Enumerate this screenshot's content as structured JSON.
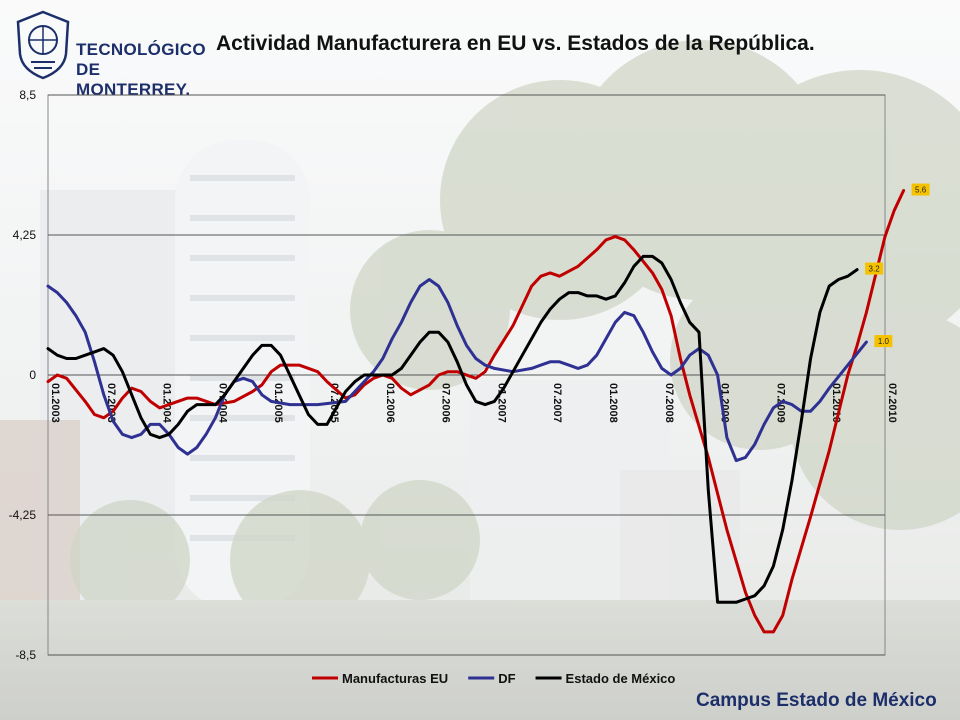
{
  "header": {
    "logo_line1": "TECNOLÓGICO",
    "logo_line2": "DE MONTERREY."
  },
  "footer": {
    "campus": "Campus Estado de México"
  },
  "colors": {
    "eu": "#c00000",
    "df": "#2e3192",
    "edomex": "#000000",
    "label_bg": "#f5c200"
  },
  "chart_data": {
    "type": "line",
    "title": "Actividad Manufacturera en EU vs. Estados de la República.",
    "xlabel": "",
    "ylabel": "",
    "ylim": [
      -8.5,
      8.5
    ],
    "yticks": [
      8.5,
      4.25,
      0,
      -4.25,
      -8.5
    ],
    "ytick_labels": [
      "8,5",
      "4,25",
      "0",
      "-4,25",
      "-8,5"
    ],
    "x_start": "2003-01",
    "x_end": "2010-07",
    "xtick_labels": [
      "01.2003",
      "07.2003",
      "01.2004",
      "07.2004",
      "01.2005",
      "07.2005",
      "01.2006",
      "07.2006",
      "01.2007",
      "07.2007",
      "01.2008",
      "07.2008",
      "01.2009",
      "07.2009",
      "01.2010",
      "07.2010"
    ],
    "grid": true,
    "legend": "bottom",
    "series": [
      {
        "name": "Manufacturas EU",
        "color": "#c00000",
        "last_label": "5.6",
        "points": [
          [
            "2003-01",
            -0.2
          ],
          [
            "2003-02",
            0.0
          ],
          [
            "2003-03",
            -0.1
          ],
          [
            "2003-05",
            -0.8
          ],
          [
            "2003-06",
            -1.2
          ],
          [
            "2003-07",
            -1.3
          ],
          [
            "2003-08",
            -1.1
          ],
          [
            "2003-09",
            -0.7
          ],
          [
            "2003-10",
            -0.4
          ],
          [
            "2003-11",
            -0.5
          ],
          [
            "2003-12",
            -0.8
          ],
          [
            "2004-01",
            -1.0
          ],
          [
            "2004-02",
            -0.9
          ],
          [
            "2004-04",
            -0.7
          ],
          [
            "2004-05",
            -0.7
          ],
          [
            "2004-07",
            -0.9
          ],
          [
            "2004-09",
            -0.8
          ],
          [
            "2004-11",
            -0.5
          ],
          [
            "2004-12",
            -0.3
          ],
          [
            "2005-01",
            0.1
          ],
          [
            "2005-02",
            0.3
          ],
          [
            "2005-04",
            0.3
          ],
          [
            "2005-06",
            0.1
          ],
          [
            "2005-07",
            -0.2
          ],
          [
            "2005-09",
            -0.7
          ],
          [
            "2005-10",
            -0.6
          ],
          [
            "2005-11",
            -0.3
          ],
          [
            "2005-12",
            -0.1
          ],
          [
            "2006-01",
            0.0
          ],
          [
            "2006-02",
            -0.1
          ],
          [
            "2006-03",
            -0.4
          ],
          [
            "2006-04",
            -0.6
          ],
          [
            "2006-06",
            -0.3
          ],
          [
            "2006-07",
            0.0
          ],
          [
            "2006-08",
            0.1
          ],
          [
            "2006-09",
            0.1
          ],
          [
            "2006-10",
            0.0
          ],
          [
            "2006-11",
            -0.1
          ],
          [
            "2006-12",
            0.1
          ],
          [
            "2007-01",
            0.6
          ],
          [
            "2007-03",
            1.5
          ],
          [
            "2007-05",
            2.7
          ],
          [
            "2007-06",
            3.0
          ],
          [
            "2007-07",
            3.1
          ],
          [
            "2007-08",
            3.0
          ],
          [
            "2007-10",
            3.3
          ],
          [
            "2007-12",
            3.8
          ],
          [
            "2008-01",
            4.1
          ],
          [
            "2008-02",
            4.2
          ],
          [
            "2008-03",
            4.1
          ],
          [
            "2008-04",
            3.8
          ],
          [
            "2008-06",
            3.1
          ],
          [
            "2008-07",
            2.6
          ],
          [
            "2008-08",
            1.8
          ],
          [
            "2008-09",
            0.5
          ],
          [
            "2008-10",
            -0.6
          ],
          [
            "2008-12",
            -2.5
          ],
          [
            "2009-02",
            -4.7
          ],
          [
            "2009-04",
            -6.6
          ],
          [
            "2009-05",
            -7.3
          ],
          [
            "2009-06",
            -7.8
          ],
          [
            "2009-07",
            -7.8
          ],
          [
            "2009-08",
            -7.3
          ],
          [
            "2009-09",
            -6.2
          ],
          [
            "2009-11",
            -4.3
          ],
          [
            "2010-01",
            -2.3
          ],
          [
            "2010-03",
            0.0
          ],
          [
            "2010-04",
            0.9
          ],
          [
            "2010-05",
            1.9
          ],
          [
            "2010-07",
            4.2
          ],
          [
            "2010-08",
            5.0
          ],
          [
            "2010-09",
            5.6
          ]
        ]
      },
      {
        "name": "DF",
        "color": "#2e3192",
        "last_label": "1.0",
        "points": [
          [
            "2003-01",
            2.7
          ],
          [
            "2003-02",
            2.5
          ],
          [
            "2003-03",
            2.2
          ],
          [
            "2003-04",
            1.8
          ],
          [
            "2003-05",
            1.3
          ],
          [
            "2003-06",
            0.4
          ],
          [
            "2003-07",
            -0.6
          ],
          [
            "2003-08",
            -1.4
          ],
          [
            "2003-09",
            -1.8
          ],
          [
            "2003-10",
            -1.9
          ],
          [
            "2003-11",
            -1.8
          ],
          [
            "2003-12",
            -1.5
          ],
          [
            "2004-01",
            -1.5
          ],
          [
            "2004-02",
            -1.8
          ],
          [
            "2004-03",
            -2.2
          ],
          [
            "2004-04",
            -2.4
          ],
          [
            "2004-05",
            -2.2
          ],
          [
            "2004-06",
            -1.8
          ],
          [
            "2004-07",
            -1.3
          ],
          [
            "2004-08",
            -0.6
          ],
          [
            "2004-09",
            -0.2
          ],
          [
            "2004-10",
            -0.1
          ],
          [
            "2004-11",
            -0.2
          ],
          [
            "2004-12",
            -0.6
          ],
          [
            "2005-01",
            -0.8
          ],
          [
            "2005-03",
            -0.9
          ],
          [
            "2005-06",
            -0.9
          ],
          [
            "2005-09",
            -0.8
          ],
          [
            "2005-10",
            -0.5
          ],
          [
            "2005-11",
            -0.2
          ],
          [
            "2005-12",
            0.1
          ],
          [
            "2006-01",
            0.5
          ],
          [
            "2006-02",
            1.1
          ],
          [
            "2006-03",
            1.6
          ],
          [
            "2006-04",
            2.2
          ],
          [
            "2006-05",
            2.7
          ],
          [
            "2006-06",
            2.9
          ],
          [
            "2006-07",
            2.7
          ],
          [
            "2006-08",
            2.2
          ],
          [
            "2006-09",
            1.5
          ],
          [
            "2006-10",
            0.9
          ],
          [
            "2006-11",
            0.5
          ],
          [
            "2006-12",
            0.3
          ],
          [
            "2007-01",
            0.2
          ],
          [
            "2007-03",
            0.1
          ],
          [
            "2007-05",
            0.2
          ],
          [
            "2007-06",
            0.3
          ],
          [
            "2007-07",
            0.4
          ],
          [
            "2007-08",
            0.4
          ],
          [
            "2007-09",
            0.3
          ],
          [
            "2007-10",
            0.2
          ],
          [
            "2007-11",
            0.3
          ],
          [
            "2007-12",
            0.6
          ],
          [
            "2008-01",
            1.1
          ],
          [
            "2008-02",
            1.6
          ],
          [
            "2008-03",
            1.9
          ],
          [
            "2008-04",
            1.8
          ],
          [
            "2008-05",
            1.3
          ],
          [
            "2008-06",
            0.7
          ],
          [
            "2008-07",
            0.2
          ],
          [
            "2008-08",
            0.0
          ],
          [
            "2008-09",
            0.2
          ],
          [
            "2008-10",
            0.6
          ],
          [
            "2008-11",
            0.8
          ],
          [
            "2008-12",
            0.6
          ],
          [
            "2009-01",
            0.0
          ],
          [
            "2009-02",
            -1.9
          ],
          [
            "2009-03",
            -2.6
          ],
          [
            "2009-04",
            -2.5
          ],
          [
            "2009-05",
            -2.1
          ],
          [
            "2009-06",
            -1.5
          ],
          [
            "2009-07",
            -1.0
          ],
          [
            "2009-08",
            -0.8
          ],
          [
            "2009-09",
            -0.9
          ],
          [
            "2009-10",
            -1.1
          ],
          [
            "2009-11",
            -1.1
          ],
          [
            "2009-12",
            -0.8
          ],
          [
            "2010-01",
            -0.4
          ],
          [
            "2010-03",
            0.3
          ],
          [
            "2010-05",
            1.0
          ]
        ]
      },
      {
        "name": "Estado de México",
        "color": "#000000",
        "last_label": "3.2",
        "points": [
          [
            "2003-01",
            0.8
          ],
          [
            "2003-02",
            0.6
          ],
          [
            "2003-03",
            0.5
          ],
          [
            "2003-04",
            0.5
          ],
          [
            "2003-05",
            0.6
          ],
          [
            "2003-06",
            0.7
          ],
          [
            "2003-07",
            0.8
          ],
          [
            "2003-08",
            0.6
          ],
          [
            "2003-09",
            0.1
          ],
          [
            "2003-10",
            -0.6
          ],
          [
            "2003-11",
            -1.3
          ],
          [
            "2003-12",
            -1.8
          ],
          [
            "2004-01",
            -1.9
          ],
          [
            "2004-02",
            -1.8
          ],
          [
            "2004-03",
            -1.5
          ],
          [
            "2004-04",
            -1.1
          ],
          [
            "2004-05",
            -0.9
          ],
          [
            "2004-07",
            -0.9
          ],
          [
            "2004-08",
            -0.6
          ],
          [
            "2004-09",
            -0.2
          ],
          [
            "2004-10",
            0.2
          ],
          [
            "2004-11",
            0.6
          ],
          [
            "2004-12",
            0.9
          ],
          [
            "2005-01",
            0.9
          ],
          [
            "2005-02",
            0.6
          ],
          [
            "2005-03",
            0.0
          ],
          [
            "2005-04",
            -0.6
          ],
          [
            "2005-05",
            -1.2
          ],
          [
            "2005-06",
            -1.5
          ],
          [
            "2005-07",
            -1.5
          ],
          [
            "2005-08",
            -1.0
          ],
          [
            "2005-09",
            -0.5
          ],
          [
            "2005-10",
            -0.2
          ],
          [
            "2005-11",
            0.0
          ],
          [
            "2005-12",
            0.0
          ],
          [
            "2006-01",
            0.0
          ],
          [
            "2006-02",
            0.0
          ],
          [
            "2006-03",
            0.2
          ],
          [
            "2006-04",
            0.6
          ],
          [
            "2006-05",
            1.0
          ],
          [
            "2006-06",
            1.3
          ],
          [
            "2006-07",
            1.3
          ],
          [
            "2006-08",
            1.0
          ],
          [
            "2006-09",
            0.4
          ],
          [
            "2006-10",
            -0.3
          ],
          [
            "2006-11",
            -0.8
          ],
          [
            "2006-12",
            -0.9
          ],
          [
            "2007-01",
            -0.8
          ],
          [
            "2007-02",
            -0.4
          ],
          [
            "2007-03",
            0.1
          ],
          [
            "2007-04",
            0.6
          ],
          [
            "2007-05",
            1.1
          ],
          [
            "2007-06",
            1.6
          ],
          [
            "2007-07",
            2.0
          ],
          [
            "2007-08",
            2.3
          ],
          [
            "2007-09",
            2.5
          ],
          [
            "2007-10",
            2.5
          ],
          [
            "2007-11",
            2.4
          ],
          [
            "2007-12",
            2.4
          ],
          [
            "2008-01",
            2.3
          ],
          [
            "2008-02",
            2.4
          ],
          [
            "2008-03",
            2.8
          ],
          [
            "2008-04",
            3.3
          ],
          [
            "2008-05",
            3.6
          ],
          [
            "2008-06",
            3.6
          ],
          [
            "2008-07",
            3.4
          ],
          [
            "2008-08",
            2.9
          ],
          [
            "2008-09",
            2.2
          ],
          [
            "2008-10",
            1.6
          ],
          [
            "2008-11",
            1.3
          ],
          [
            "2008-12",
            -3.5
          ],
          [
            "2009-01",
            -6.9
          ],
          [
            "2009-02",
            -6.9
          ],
          [
            "2009-03",
            -6.9
          ],
          [
            "2009-04",
            -6.8
          ],
          [
            "2009-05",
            -6.7
          ],
          [
            "2009-06",
            -6.4
          ],
          [
            "2009-07",
            -5.8
          ],
          [
            "2009-08",
            -4.7
          ],
          [
            "2009-09",
            -3.2
          ],
          [
            "2009-10",
            -1.4
          ],
          [
            "2009-11",
            0.5
          ],
          [
            "2009-12",
            1.9
          ],
          [
            "2010-01",
            2.7
          ],
          [
            "2010-02",
            2.9
          ],
          [
            "2010-03",
            3.0
          ],
          [
            "2010-04",
            3.2
          ]
        ]
      }
    ]
  }
}
